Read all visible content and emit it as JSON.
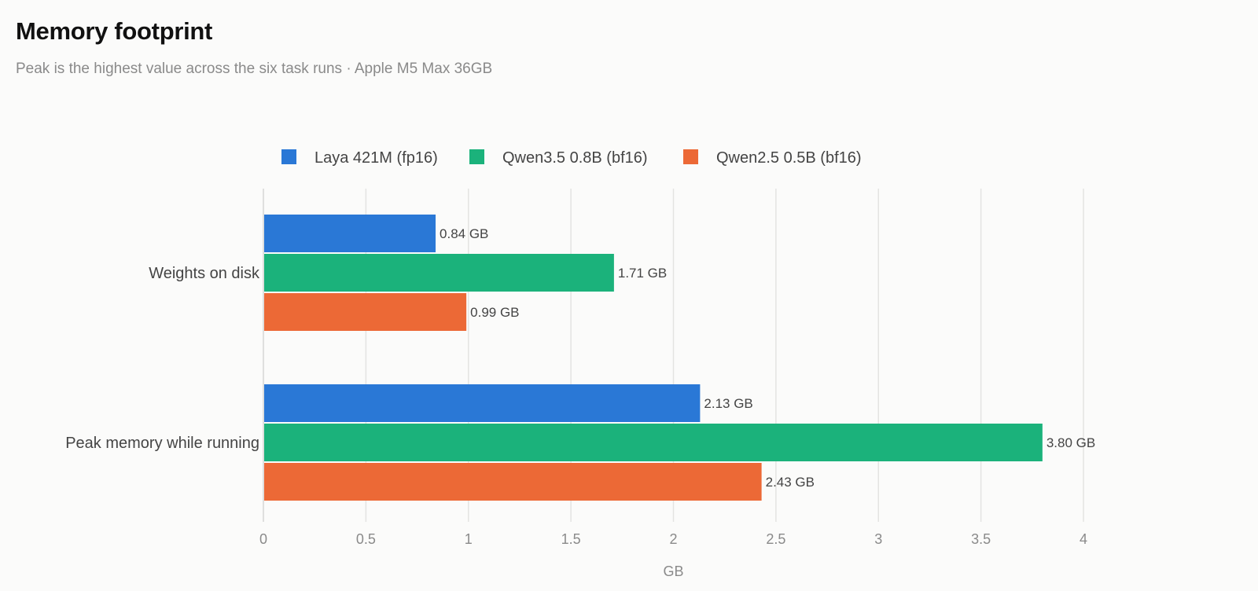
{
  "header": {
    "title": "Memory footprint",
    "subtitle": "Peak is the highest value across the six task runs · Apple M5 Max 36GB"
  },
  "chart_data": {
    "type": "bar",
    "orientation": "horizontal",
    "categories": [
      "Weights on disk",
      "Peak memory while running"
    ],
    "series": [
      {
        "name": "Laya 421M (fp16)",
        "color": "#2a78d6",
        "values": [
          0.84,
          2.13
        ],
        "labels": [
          "0.84 GB",
          "2.13 GB"
        ]
      },
      {
        "name": "Qwen3.5 0.8B (bf16)",
        "color": "#1bb27b",
        "values": [
          1.71,
          3.8
        ],
        "labels": [
          "1.71 GB",
          "3.80 GB"
        ]
      },
      {
        "name": "Qwen2.5 0.5B (bf16)",
        "color": "#ec6936",
        "values": [
          0.99,
          2.43
        ],
        "labels": [
          "0.99 GB",
          "2.43 GB"
        ]
      }
    ],
    "xlabel": "GB",
    "xlim": [
      0,
      4
    ],
    "xticks": [
      "0",
      "0.5",
      "1",
      "1.5",
      "2",
      "2.5",
      "3",
      "3.5",
      "4"
    ],
    "grid": true,
    "legend_position": "top"
  }
}
